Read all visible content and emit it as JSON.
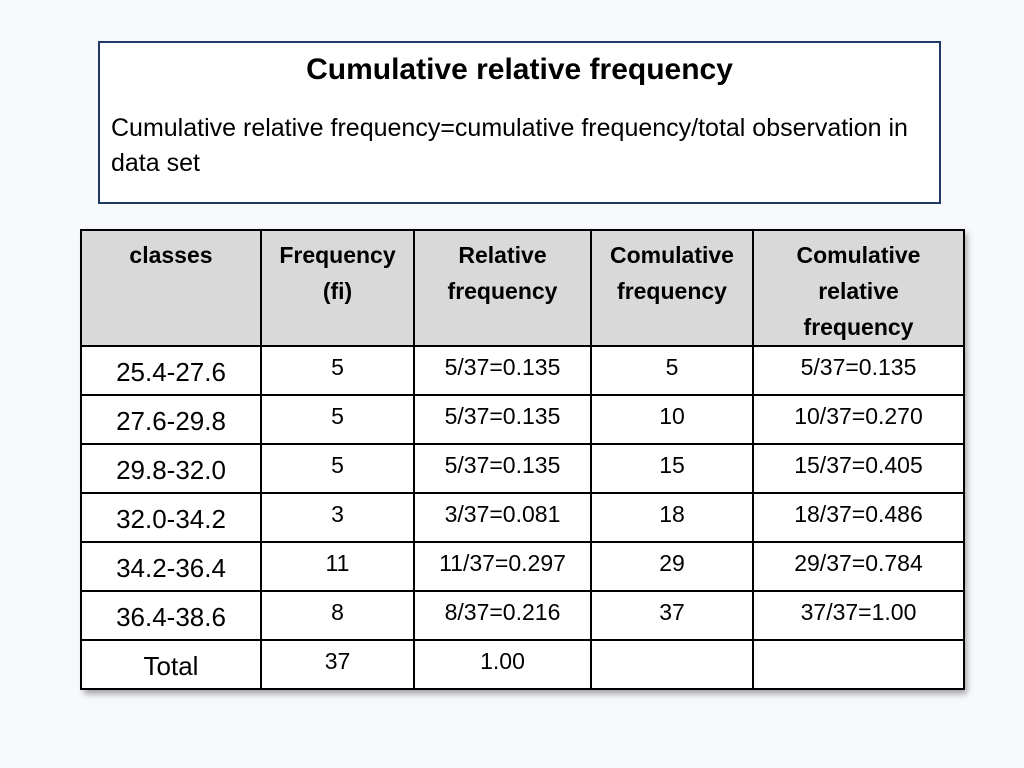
{
  "title": "Cumulative relative frequency",
  "definition": "Cumulative relative frequency=cumulative frequency/total observation in data set",
  "table": {
    "headers": {
      "classes": "classes",
      "frequency_line1": "Frequency",
      "frequency_line2": "(fi)",
      "relative_line1": "Relative",
      "relative_line2": "frequency",
      "cumulative_line1": "Comulative",
      "cumulative_line2": "frequency",
      "cum_relative_line1": "Comulative",
      "cum_relative_line2": "relative",
      "cum_relative_line3": "frequency"
    },
    "rows": [
      {
        "class": "25.4-27.6",
        "frequency": "5",
        "relative": "5/37=0.135",
        "cumulative": "5",
        "cum_relative": "5/37=0.135"
      },
      {
        "class": "27.6-29.8",
        "frequency": "5",
        "relative": "5/37=0.135",
        "cumulative": "10",
        "cum_relative": "10/37=0.270"
      },
      {
        "class": "29.8-32.0",
        "frequency": "5",
        "relative": "5/37=0.135",
        "cumulative": "15",
        "cum_relative": "15/37=0.405"
      },
      {
        "class": "32.0-34.2",
        "frequency": "3",
        "relative": "3/37=0.081",
        "cumulative": "18",
        "cum_relative": "18/37=0.486"
      },
      {
        "class": "34.2-36.4",
        "frequency": "11",
        "relative": "11/37=0.297",
        "cumulative": "29",
        "cum_relative": "29/37=0.784"
      },
      {
        "class": "36.4-38.6",
        "frequency": "8",
        "relative": "8/37=0.216",
        "cumulative": "37",
        "cum_relative": "37/37=1.00"
      }
    ],
    "total": {
      "label": "Total",
      "frequency": "37",
      "relative": "1.00",
      "cumulative": "",
      "cum_relative": ""
    }
  }
}
